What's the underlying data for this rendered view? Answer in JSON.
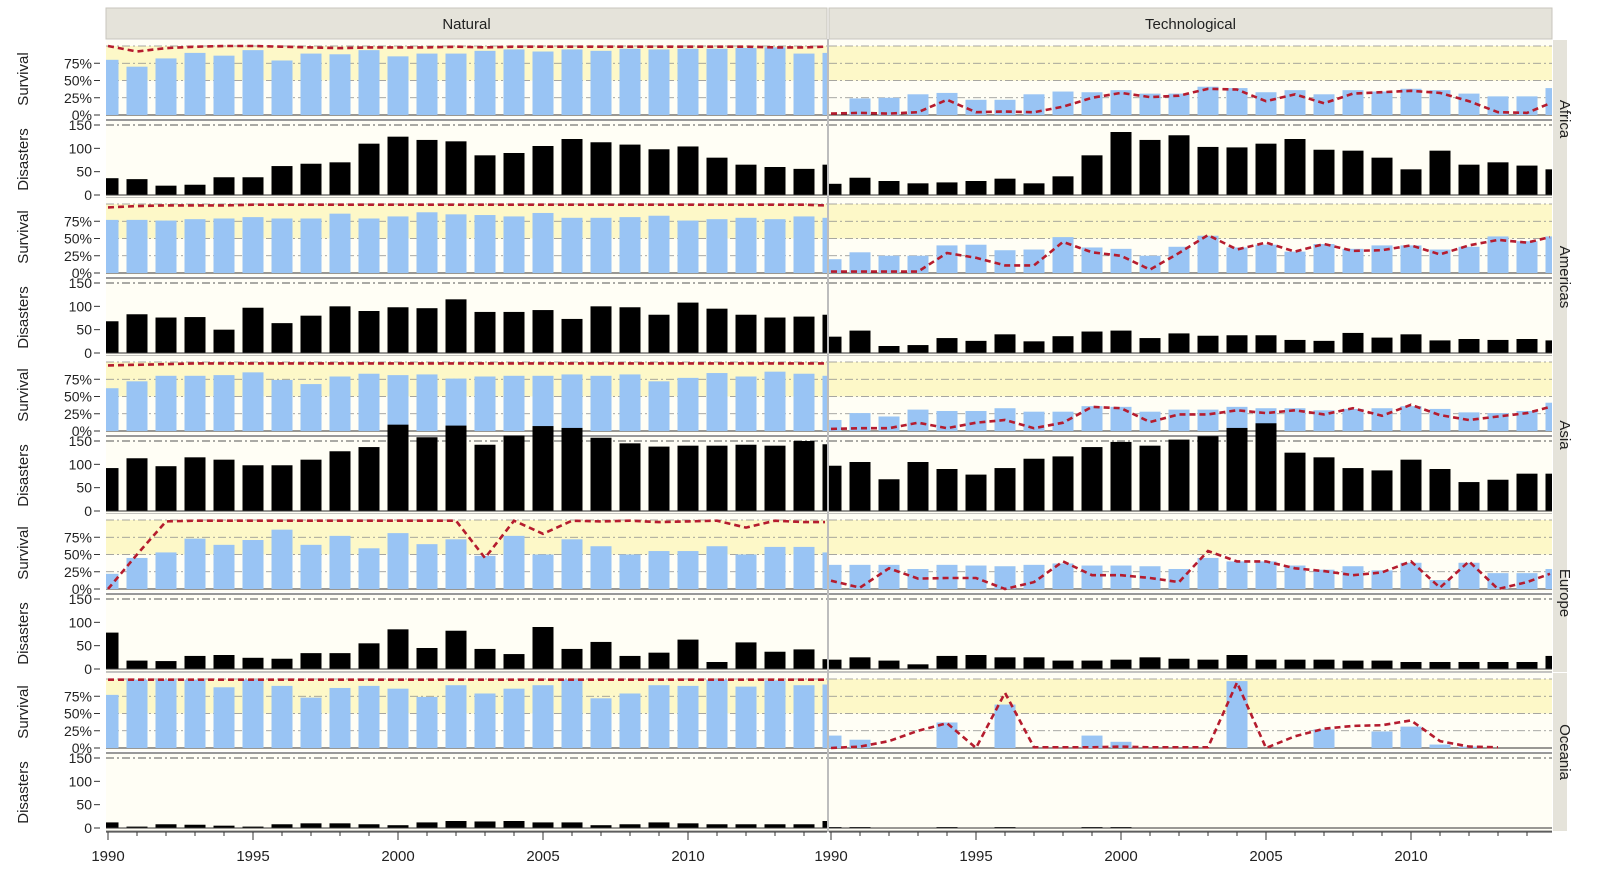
{
  "chart_data": {
    "type": "bar",
    "description_of_layout": "",
    "column_headers": [
      "Natural",
      "Technological"
    ],
    "region_labels": [
      "Africa",
      "Americas",
      "Asia",
      "Europe",
      "Oceania"
    ],
    "row_labels": {
      "survival": "Survival",
      "disasters": "Disasters"
    },
    "survival_ticks": [
      "0%",
      "25%",
      "50%",
      "75%"
    ],
    "disasters_ticks": [
      "0",
      "50",
      "100",
      "150"
    ],
    "x_ticks": [
      "1990",
      "1995",
      "2000",
      "2005",
      "2010"
    ],
    "years": [
      1990,
      1991,
      1992,
      1993,
      1994,
      1995,
      1996,
      1997,
      1998,
      1999,
      2000,
      2001,
      2002,
      2003,
      2004,
      2005,
      2006,
      2007,
      2008,
      2009,
      2010,
      2011,
      2012,
      2013,
      2014,
      2015
    ],
    "colors": {
      "survival_bar": "#99c4f4",
      "disasters_bar": "#000000",
      "line": "#b51c2e",
      "band_fill": "#fdf8c8",
      "panel_bg": "#fffef5",
      "header_bg": "#e5e3da",
      "grid": "#555555"
    },
    "panels": {
      "Africa": {
        "Natural": {
          "survival": [
            0.8,
            0.7,
            0.82,
            0.9,
            0.86,
            0.94,
            0.79,
            0.89,
            0.88,
            0.94,
            0.85,
            0.89,
            0.89,
            0.93,
            0.95,
            0.92,
            0.95,
            0.93,
            0.96,
            0.95,
            0.96,
            0.96,
            0.97,
            0.98,
            0.89,
            0.9
          ],
          "line": [
            1.0,
            0.92,
            0.97,
            0.99,
            1.0,
            1.0,
            0.99,
            0.98,
            0.97,
            0.98,
            0.98,
            0.98,
            0.99,
            0.98,
            0.99,
            0.99,
            0.99,
            0.99,
            0.99,
            0.99,
            0.99,
            0.99,
            0.99,
            0.98,
            0.98,
            0.99
          ],
          "disasters": [
            36,
            34,
            20,
            22,
            38,
            38,
            62,
            67,
            70,
            110,
            125,
            118,
            115,
            85,
            90,
            105,
            120,
            113,
            108,
            98,
            104,
            80,
            65,
            60,
            56,
            65
          ]
        },
        "Technological": {
          "survival": [
            0.0,
            0.24,
            0.25,
            0.3,
            0.32,
            0.22,
            0.22,
            0.3,
            0.34,
            0.33,
            0.36,
            0.31,
            0.31,
            0.41,
            0.39,
            0.33,
            0.36,
            0.3,
            0.36,
            0.34,
            0.38,
            0.36,
            0.31,
            0.27,
            0.27,
            0.39
          ],
          "line": [
            0.02,
            0.03,
            0.02,
            0.04,
            0.22,
            0.04,
            0.05,
            0.04,
            0.12,
            0.25,
            0.32,
            0.26,
            0.28,
            0.38,
            0.37,
            0.2,
            0.3,
            0.17,
            0.31,
            0.33,
            0.35,
            0.32,
            0.2,
            0.04,
            0.03,
            0.17
          ],
          "disasters": [
            24,
            37,
            30,
            25,
            27,
            30,
            35,
            25,
            40,
            85,
            135,
            118,
            128,
            103,
            102,
            110,
            120,
            97,
            95,
            80,
            55,
            95,
            65,
            70,
            63,
            55
          ]
        }
      },
      "Americas": {
        "Natural": {
          "survival": [
            0.77,
            0.77,
            0.76,
            0.78,
            0.79,
            0.81,
            0.79,
            0.79,
            0.86,
            0.79,
            0.82,
            0.88,
            0.85,
            0.84,
            0.82,
            0.87,
            0.8,
            0.8,
            0.81,
            0.83,
            0.76,
            0.78,
            0.8,
            0.78,
            0.82,
            0.8
          ],
          "line": [
            0.95,
            0.97,
            0.98,
            0.98,
            0.98,
            0.99,
            0.99,
            0.99,
            0.99,
            0.99,
            0.99,
            0.99,
            0.99,
            0.99,
            0.99,
            0.99,
            0.99,
            0.99,
            0.99,
            0.99,
            0.99,
            0.99,
            0.99,
            0.99,
            0.99,
            0.98
          ],
          "disasters": [
            68,
            83,
            76,
            77,
            50,
            97,
            64,
            80,
            100,
            90,
            98,
            96,
            115,
            88,
            88,
            92,
            73,
            100,
            98,
            82,
            108,
            95,
            82,
            76,
            78,
            82
          ]
        },
        "Technological": {
          "survival": [
            0.2,
            0.3,
            0.25,
            0.25,
            0.4,
            0.41,
            0.33,
            0.34,
            0.52,
            0.37,
            0.35,
            0.25,
            0.38,
            0.54,
            0.37,
            0.41,
            0.31,
            0.42,
            0.35,
            0.4,
            0.4,
            0.34,
            0.38,
            0.53,
            0.46,
            0.53
          ],
          "line": [
            0.02,
            0.02,
            0.02,
            0.02,
            0.29,
            0.22,
            0.11,
            0.11,
            0.45,
            0.3,
            0.25,
            0.05,
            0.29,
            0.55,
            0.34,
            0.44,
            0.31,
            0.42,
            0.32,
            0.33,
            0.4,
            0.27,
            0.4,
            0.48,
            0.44,
            0.52
          ],
          "disasters": [
            35,
            48,
            15,
            17,
            32,
            26,
            40,
            25,
            36,
            46,
            48,
            32,
            42,
            37,
            38,
            38,
            28,
            26,
            43,
            33,
            40,
            27,
            30,
            28,
            30,
            27
          ]
        }
      },
      "Asia": {
        "Natural": {
          "survival": [
            0.62,
            0.72,
            0.8,
            0.8,
            0.81,
            0.85,
            0.74,
            0.68,
            0.79,
            0.83,
            0.81,
            0.82,
            0.76,
            0.79,
            0.8,
            0.8,
            0.82,
            0.8,
            0.82,
            0.72,
            0.77,
            0.84,
            0.79,
            0.86,
            0.83,
            0.8
          ],
          "line": [
            0.95,
            0.96,
            0.97,
            0.98,
            0.98,
            0.98,
            0.98,
            0.98,
            0.98,
            0.98,
            0.98,
            0.98,
            0.98,
            0.98,
            0.98,
            0.98,
            0.98,
            0.98,
            0.98,
            0.98,
            0.98,
            0.98,
            0.98,
            0.98,
            0.98,
            0.98
          ],
          "disasters": [
            92,
            113,
            96,
            115,
            110,
            98,
            98,
            110,
            128,
            137,
            185,
            158,
            183,
            142,
            162,
            182,
            178,
            157,
            145,
            138,
            140,
            140,
            142,
            140,
            150,
            143
          ]
        },
        "Technological": {
          "survival": [
            0.16,
            0.26,
            0.21,
            0.31,
            0.29,
            0.29,
            0.33,
            0.28,
            0.28,
            0.36,
            0.35,
            0.28,
            0.31,
            0.31,
            0.35,
            0.33,
            0.33,
            0.3,
            0.32,
            0.33,
            0.36,
            0.32,
            0.27,
            0.26,
            0.29,
            0.41
          ],
          "line": [
            0.03,
            0.04,
            0.04,
            0.12,
            0.04,
            0.12,
            0.16,
            0.04,
            0.12,
            0.35,
            0.33,
            0.13,
            0.24,
            0.24,
            0.3,
            0.26,
            0.3,
            0.24,
            0.33,
            0.22,
            0.38,
            0.23,
            0.16,
            0.21,
            0.26,
            0.35
          ],
          "disasters": [
            97,
            105,
            68,
            105,
            90,
            78,
            92,
            112,
            117,
            137,
            148,
            140,
            153,
            160,
            178,
            188,
            125,
            115,
            92,
            87,
            110,
            90,
            62,
            67,
            80,
            80
          ]
        }
      },
      "Europe": {
        "Natural": {
          "survival": [
            0.22,
            0.45,
            0.53,
            0.73,
            0.64,
            0.71,
            0.86,
            0.64,
            0.77,
            0.59,
            0.81,
            0.65,
            0.72,
            0.48,
            0.77,
            0.5,
            0.72,
            0.62,
            0.5,
            0.55,
            0.55,
            0.62,
            0.5,
            0.61,
            0.61,
            0.53
          ],
          "line": [
            0.0,
            0.5,
            0.98,
            0.99,
            0.99,
            0.99,
            0.99,
            0.99,
            0.99,
            0.99,
            0.99,
            0.99,
            0.99,
            0.45,
            0.99,
            0.8,
            0.99,
            0.98,
            0.99,
            0.97,
            0.98,
            0.99,
            0.89,
            0.99,
            0.97,
            0.97
          ],
          "disasters": [
            78,
            18,
            17,
            28,
            30,
            24,
            22,
            34,
            34,
            55,
            85,
            45,
            82,
            43,
            32,
            90,
            43,
            58,
            28,
            35,
            63,
            15,
            57,
            37,
            42,
            21
          ]
        },
        "Technological": {
          "survival": [
            0.35,
            0.35,
            0.35,
            0.29,
            0.35,
            0.34,
            0.33,
            0.35,
            0.37,
            0.34,
            0.34,
            0.33,
            0.29,
            0.45,
            0.4,
            0.4,
            0.34,
            0.28,
            0.33,
            0.27,
            0.38,
            0.13,
            0.38,
            0.23,
            0.23,
            0.29
          ],
          "line": [
            0.12,
            0.02,
            0.3,
            0.15,
            0.16,
            0.16,
            0.0,
            0.1,
            0.4,
            0.2,
            0.2,
            0.16,
            0.1,
            0.55,
            0.4,
            0.4,
            0.3,
            0.26,
            0.2,
            0.24,
            0.4,
            0.02,
            0.4,
            0.0,
            0.1,
            0.22
          ],
          "disasters": [
            20,
            25,
            18,
            10,
            28,
            30,
            25,
            25,
            18,
            18,
            20,
            25,
            22,
            20,
            30,
            20,
            20,
            20,
            18,
            18,
            15,
            15,
            15,
            15,
            15,
            28
          ]
        }
      },
      "Oceania": {
        "Natural": {
          "survival": [
            0.77,
            0.99,
            0.99,
            0.99,
            0.88,
            0.99,
            0.9,
            0.73,
            0.87,
            0.9,
            0.86,
            0.74,
            0.91,
            0.79,
            0.86,
            0.91,
            0.99,
            0.72,
            0.79,
            0.91,
            0.9,
            0.99,
            0.89,
            0.98,
            0.91,
            0.92
          ],
          "line": [
            0.99,
            0.99,
            0.99,
            0.99,
            0.99,
            0.99,
            0.99,
            0.99,
            0.99,
            0.99,
            0.99,
            0.99,
            0.99,
            0.99,
            0.99,
            0.99,
            0.99,
            0.99,
            0.99,
            0.99,
            0.99,
            0.99,
            0.99,
            0.99,
            0.99,
            0.99
          ],
          "disasters": [
            12,
            3,
            8,
            7,
            5,
            3,
            8,
            10,
            10,
            8,
            6,
            12,
            15,
            14,
            15,
            12,
            12,
            6,
            8,
            12,
            10,
            8,
            8,
            8,
            8,
            15
          ]
        },
        "Technological": {
          "survival": [
            0.18,
            0.12,
            0.0,
            0.0,
            0.37,
            0.0,
            0.63,
            0.0,
            0.0,
            0.18,
            0.09,
            0.0,
            0.0,
            0.0,
            0.97,
            0.0,
            0.0,
            0.27,
            0.0,
            0.24,
            0.31,
            0.05,
            0.02,
            0.0,
            0.0,
            0.0
          ],
          "line": [
            0.0,
            0.02,
            0.1,
            0.25,
            0.36,
            0.0,
            0.8,
            0.01,
            0.01,
            0.01,
            0.02,
            0.01,
            0.01,
            0.01,
            0.95,
            0.0,
            0.17,
            0.28,
            0.32,
            0.33,
            0.4,
            0.1,
            0.02,
            0.01,
            null,
            null
          ],
          "disasters": [
            2,
            2,
            0,
            0,
            2,
            0,
            2,
            0,
            0,
            2,
            2,
            0,
            0,
            0,
            0,
            0,
            0,
            0,
            0,
            0,
            0,
            0,
            0,
            0,
            0,
            0
          ]
        }
      }
    },
    "ylim_survival": [
      0,
      1
    ],
    "ylim_disasters": [
      0,
      150
    ]
  }
}
